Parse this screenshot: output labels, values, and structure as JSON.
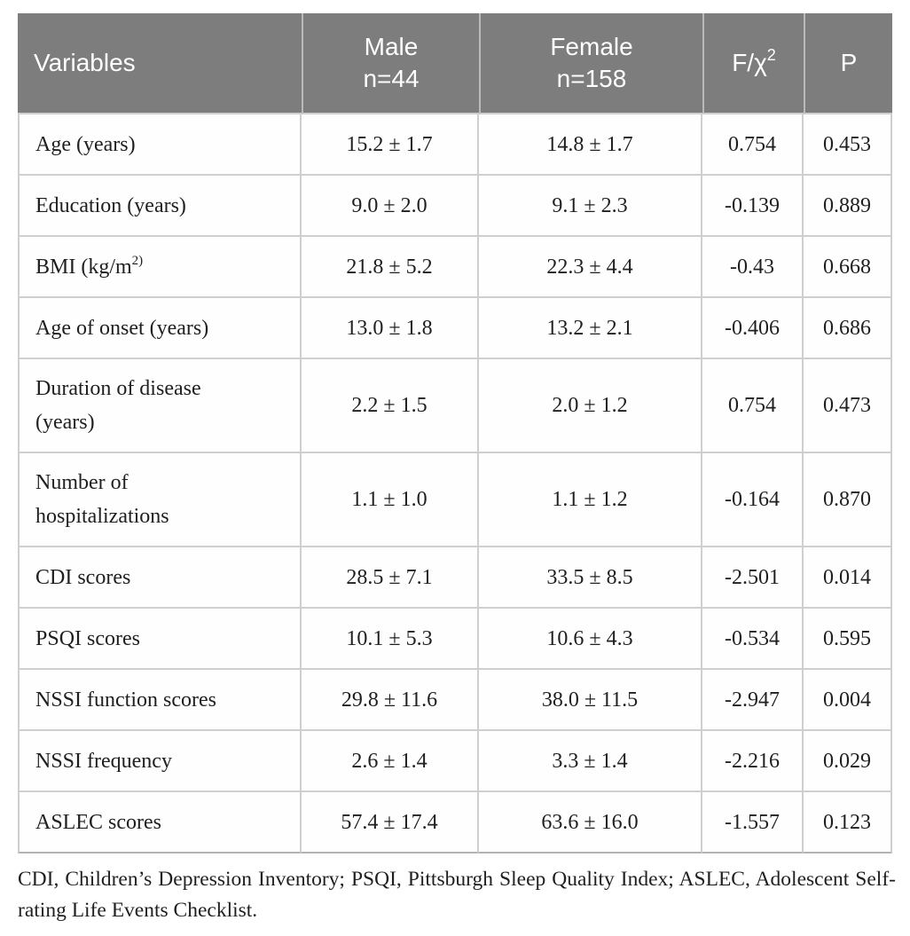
{
  "colors": {
    "header_bg": "#7d7d7d",
    "header_text": "#ffffff",
    "grid_line": "#cfcfcf",
    "body_text": "#1f1f1f"
  },
  "table": {
    "header": {
      "variables": "Variables",
      "male": {
        "line1": "Male",
        "line2": "n=44"
      },
      "female": {
        "line1": "Female",
        "line2": "n=158"
      },
      "stat": {
        "prefix": "F/",
        "chi": "χ",
        "sup": "2"
      },
      "p": "P"
    },
    "rows": [
      {
        "label": "Age (years)",
        "label_sup": "",
        "male": "15.2 ± 1.7",
        "female": "14.8 ± 1.7",
        "stat": "0.754",
        "p": "0.453"
      },
      {
        "label": "Education (years)",
        "label_sup": "",
        "male": "9.0 ± 2.0",
        "female": "9.1 ± 2.3",
        "stat": "-0.139",
        "p": "0.889"
      },
      {
        "label": "BMI (kg/m",
        "label_sup": "2)",
        "male": "21.8 ± 5.2",
        "female": "22.3 ± 4.4",
        "stat": "-0.43",
        "p": "0.668"
      },
      {
        "label": "Age of onset (years)",
        "label_sup": "",
        "male": "13.0 ± 1.8",
        "female": "13.2 ± 2.1",
        "stat": "-0.406",
        "p": "0.686"
      },
      {
        "label": "Duration of disease (years)",
        "label_sup": "",
        "male": "2.2 ± 1.5",
        "female": "2.0 ± 1.2",
        "stat": "0.754",
        "p": "0.473"
      },
      {
        "label": "Number of hospitalizations",
        "label_sup": "",
        "male": "1.1 ± 1.0",
        "female": "1.1 ± 1.2",
        "stat": "-0.164",
        "p": "0.870"
      },
      {
        "label": "CDI scores",
        "label_sup": "",
        "male": "28.5 ± 7.1",
        "female": "33.5 ± 8.5",
        "stat": "-2.501",
        "p": "0.014"
      },
      {
        "label": "PSQI scores",
        "label_sup": "",
        "male": "10.1 ± 5.3",
        "female": "10.6 ± 4.3",
        "stat": "-0.534",
        "p": "0.595"
      },
      {
        "label": "NSSI function scores",
        "label_sup": "",
        "male": "29.8 ± 11.6",
        "female": "38.0 ± 11.5",
        "stat": "-2.947",
        "p": "0.004"
      },
      {
        "label": "NSSI frequency",
        "label_sup": "",
        "male": "2.6 ± 1.4",
        "female": "3.3 ± 1.4",
        "stat": "-2.216",
        "p": "0.029"
      },
      {
        "label": "ASLEC scores",
        "label_sup": "",
        "male": "57.4 ± 17.4",
        "female": "63.6 ± 16.0",
        "stat": "-1.557",
        "p": "0.123"
      }
    ],
    "footnote": "CDI, Children’s Depression Inventory; PSQI, Pittsburgh Sleep Quality Index; ASLEC, Adolescent Self-rating Life Events Checklist."
  }
}
